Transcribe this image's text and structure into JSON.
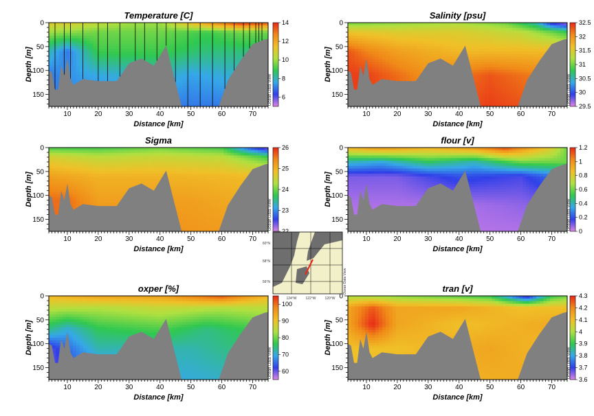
{
  "watermark": "Ocean Data View",
  "colormap": [
    "#e085e6",
    "#3040e8",
    "#36a8e8",
    "#30c850",
    "#b0e040",
    "#f0c028",
    "#f08a18",
    "#e82818"
  ],
  "terrain_color": "#808080",
  "station_x": [
    6,
    9,
    11,
    15,
    20,
    23,
    27,
    32,
    35,
    39,
    42,
    45,
    49,
    53,
    57,
    61,
    64,
    67,
    69,
    71,
    72,
    73
  ],
  "map": {
    "lat_labels": [
      "60°N",
      "58°N",
      "56°N"
    ],
    "lon_labels": [
      "124°W",
      "122°W",
      "120°W"
    ],
    "watermark": "Ocean Data View"
  },
  "chart_data": [
    {
      "id": "temperature",
      "type": "heatmap",
      "title": "Temperature [C]",
      "xlabel": "Distance [km]",
      "ylabel": "Depth [m]",
      "xlim": [
        4,
        75
      ],
      "ylim": [
        0,
        175
      ],
      "xticks": [
        10,
        20,
        30,
        40,
        50,
        60,
        70
      ],
      "yticks": [
        0,
        50,
        100,
        150
      ],
      "colorbar": {
        "ticks": [
          "6",
          "8",
          "10",
          "12",
          "14"
        ],
        "min": 5,
        "max": 14
      },
      "stations_shown": true,
      "field": {
        "levels": [
          {
            "depth": 0,
            "values": [
              [
                4,
                11
              ],
              [
                10,
                11
              ],
              [
                20,
                10.5
              ],
              [
                30,
                10
              ],
              [
                40,
                10
              ],
              [
                50,
                11.5
              ],
              [
                60,
                13
              ],
              [
                66,
                14
              ],
              [
                75,
                13.5
              ]
            ]
          },
          {
            "depth": 20,
            "values": [
              [
                4,
                10
              ],
              [
                20,
                9.5
              ],
              [
                40,
                9.5
              ],
              [
                55,
                9
              ],
              [
                66,
                9.5
              ],
              [
                75,
                9.5
              ]
            ]
          },
          {
            "depth": 60,
            "values": [
              [
                4,
                8
              ],
              [
                10,
                7
              ],
              [
                20,
                9
              ],
              [
                40,
                9
              ],
              [
                55,
                8.5
              ],
              [
                75,
                8.5
              ]
            ]
          },
          {
            "depth": 110,
            "values": [
              [
                4,
                7
              ],
              [
                15,
                7.5
              ],
              [
                40,
                8
              ],
              [
                50,
                7.5
              ],
              [
                75,
                8
              ]
            ]
          },
          {
            "depth": 175,
            "values": [
              [
                4,
                7
              ],
              [
                40,
                7
              ],
              [
                50,
                7
              ],
              [
                75,
                7
              ]
            ]
          }
        ]
      }
    },
    {
      "id": "salinity",
      "type": "heatmap",
      "title": "Salinity [psu]",
      "xlabel": "Distance [km]",
      "ylabel": "Depth [m]",
      "xlim": [
        4,
        75
      ],
      "ylim": [
        0,
        175
      ],
      "xticks": [
        10,
        20,
        30,
        40,
        50,
        60,
        70
      ],
      "yticks": [
        0,
        50,
        100,
        150
      ],
      "colorbar": {
        "ticks": [
          "29.5",
          "30",
          "30.5",
          "31",
          "31.5",
          "32",
          "32.5"
        ],
        "min": 29.5,
        "max": 32.5
      },
      "stations_shown": false,
      "field": {
        "levels": [
          {
            "depth": 0,
            "values": [
              [
                4,
                31
              ],
              [
                20,
                31.1
              ],
              [
                40,
                31.2
              ],
              [
                55,
                31
              ],
              [
                65,
                30.5
              ],
              [
                70,
                29.8
              ],
              [
                75,
                29.6
              ]
            ]
          },
          {
            "depth": 20,
            "values": [
              [
                4,
                31.6
              ],
              [
                20,
                31.5
              ],
              [
                40,
                31.5
              ],
              [
                60,
                31.3
              ],
              [
                70,
                31
              ],
              [
                75,
                30.8
              ]
            ]
          },
          {
            "depth": 60,
            "values": [
              [
                4,
                32.3
              ],
              [
                10,
                32.1
              ],
              [
                20,
                31.9
              ],
              [
                40,
                31.7
              ],
              [
                60,
                31.7
              ],
              [
                75,
                31.7
              ]
            ]
          },
          {
            "depth": 110,
            "values": [
              [
                4,
                32.4
              ],
              [
                10,
                32.4
              ],
              [
                30,
                32
              ],
              [
                50,
                32.3
              ],
              [
                75,
                32
              ]
            ]
          },
          {
            "depth": 175,
            "values": [
              [
                4,
                32.4
              ],
              [
                30,
                32.2
              ],
              [
                50,
                32.4
              ],
              [
                75,
                32.2
              ]
            ]
          }
        ]
      }
    },
    {
      "id": "sigma",
      "type": "heatmap",
      "title": "Sigma",
      "xlabel": "Distance [km]",
      "ylabel": "Depth [m]",
      "xlim": [
        4,
        75
      ],
      "ylim": [
        0,
        175
      ],
      "xticks": [
        10,
        20,
        30,
        40,
        50,
        60,
        70
      ],
      "yticks": [
        0,
        50,
        100,
        150
      ],
      "colorbar": {
        "ticks": [
          "22",
          "23",
          "24",
          "25",
          "26"
        ],
        "min": 22,
        "max": 26
      },
      "stations_shown": false,
      "field": {
        "levels": [
          {
            "depth": 0,
            "values": [
              [
                4,
                23.8
              ],
              [
                20,
                23.8
              ],
              [
                40,
                24
              ],
              [
                60,
                23.8
              ],
              [
                70,
                22.6
              ],
              [
                75,
                22.2
              ]
            ]
          },
          {
            "depth": 20,
            "values": [
              [
                4,
                24.6
              ],
              [
                20,
                24.4
              ],
              [
                40,
                24.5
              ],
              [
                60,
                24.4
              ],
              [
                70,
                24
              ],
              [
                75,
                23.8
              ]
            ]
          },
          {
            "depth": 60,
            "values": [
              [
                4,
                25.2
              ],
              [
                20,
                25
              ],
              [
                40,
                25
              ],
              [
                75,
                24.9
              ]
            ]
          },
          {
            "depth": 110,
            "values": [
              [
                4,
                25.6
              ],
              [
                10,
                25.6
              ],
              [
                20,
                25.2
              ],
              [
                50,
                25.2
              ],
              [
                75,
                25
              ]
            ]
          },
          {
            "depth": 175,
            "values": [
              [
                4,
                25.6
              ],
              [
                50,
                25.3
              ],
              [
                75,
                25.2
              ]
            ]
          }
        ]
      }
    },
    {
      "id": "flour",
      "type": "heatmap",
      "title": "flour [v]",
      "xlabel": "Distance [km]",
      "ylabel": "Depth [m]",
      "xlim": [
        4,
        75
      ],
      "ylim": [
        0,
        175
      ],
      "xticks": [
        10,
        20,
        30,
        40,
        50,
        60,
        70
      ],
      "yticks": [
        0,
        50,
        100,
        150
      ],
      "colorbar": {
        "ticks": [
          "0",
          "0.2",
          "0.4",
          "0.6",
          "0.8",
          "1",
          "1.2"
        ],
        "min": 0,
        "max": 1.2
      },
      "stations_shown": false,
      "field": {
        "levels": [
          {
            "depth": 0,
            "values": [
              [
                4,
                0.9
              ],
              [
                15,
                1
              ],
              [
                30,
                0.9
              ],
              [
                45,
                1
              ],
              [
                55,
                1.15
              ],
              [
                70,
                0.8
              ],
              [
                75,
                0.6
              ]
            ]
          },
          {
            "depth": 30,
            "values": [
              [
                4,
                0.4
              ],
              [
                15,
                0.35
              ],
              [
                30,
                0.5
              ],
              [
                45,
                0.4
              ],
              [
                60,
                0.6
              ],
              [
                75,
                0.6
              ]
            ]
          },
          {
            "depth": 60,
            "values": [
              [
                4,
                0.1
              ],
              [
                20,
                0.1
              ],
              [
                40,
                0.2
              ],
              [
                60,
                0.15
              ],
              [
                75,
                0.3
              ]
            ]
          },
          {
            "depth": 120,
            "values": [
              [
                4,
                0.05
              ],
              [
                40,
                0.05
              ],
              [
                75,
                0.1
              ]
            ]
          },
          {
            "depth": 175,
            "values": [
              [
                4,
                0.03
              ],
              [
                75,
                0.05
              ]
            ]
          }
        ]
      }
    },
    {
      "id": "oxper",
      "type": "heatmap",
      "title": "oxper [%]",
      "xlabel": "Distance [km]",
      "ylabel": "Depth [m]",
      "xlim": [
        4,
        75
      ],
      "ylim": [
        0,
        175
      ],
      "xticks": [
        10,
        20,
        30,
        40,
        50,
        60,
        70
      ],
      "yticks": [
        0,
        50,
        100,
        150
      ],
      "colorbar": {
        "ticks": [
          "60",
          "70",
          "80",
          "90",
          "100"
        ],
        "min": 55,
        "max": 105
      },
      "stations_shown": false,
      "field": {
        "levels": [
          {
            "depth": 0,
            "values": [
              [
                4,
                92
              ],
              [
                20,
                95
              ],
              [
                40,
                95
              ],
              [
                60,
                102
              ],
              [
                75,
                92
              ]
            ]
          },
          {
            "depth": 25,
            "values": [
              [
                4,
                85
              ],
              [
                20,
                84
              ],
              [
                40,
                86
              ],
              [
                60,
                84
              ],
              [
                75,
                85
              ]
            ]
          },
          {
            "depth": 70,
            "values": [
              [
                4,
                74
              ],
              [
                10,
                70
              ],
              [
                20,
                76
              ],
              [
                40,
                78
              ],
              [
                55,
                74
              ],
              [
                75,
                78
              ]
            ]
          },
          {
            "depth": 110,
            "values": [
              [
                4,
                60
              ],
              [
                10,
                65
              ],
              [
                20,
                72
              ],
              [
                50,
                72
              ],
              [
                75,
                76
              ]
            ]
          },
          {
            "depth": 175,
            "values": [
              [
                4,
                60
              ],
              [
                40,
                70
              ],
              [
                50,
                70
              ],
              [
                75,
                72
              ]
            ]
          }
        ]
      }
    },
    {
      "id": "tran",
      "type": "heatmap",
      "title": "tran [v]",
      "xlabel": "Distance [km]",
      "ylabel": "Depth [m]",
      "xlim": [
        4,
        75
      ],
      "ylim": [
        0,
        175
      ],
      "xticks": [
        10,
        20,
        30,
        40,
        50,
        60,
        70
      ],
      "yticks": [
        0,
        50,
        100,
        150
      ],
      "colorbar": {
        "ticks": [
          "3.6",
          "3.7",
          "3.8",
          "3.9",
          "4",
          "4.1",
          "4.2",
          "4.3"
        ],
        "min": 3.6,
        "max": 4.3
      },
      "stations_shown": false,
      "field": {
        "levels": [
          {
            "depth": 0,
            "values": [
              [
                4,
                4
              ],
              [
                30,
                3.95
              ],
              [
                50,
                3.9
              ],
              [
                62,
                3.65
              ],
              [
                70,
                3.9
              ],
              [
                75,
                3.95
              ]
            ]
          },
          {
            "depth": 25,
            "values": [
              [
                4,
                4.15
              ],
              [
                12,
                4.25
              ],
              [
                20,
                4.15
              ],
              [
                40,
                4.15
              ],
              [
                60,
                4.1
              ],
              [
                75,
                4.1
              ]
            ]
          },
          {
            "depth": 60,
            "values": [
              [
                4,
                4.15
              ],
              [
                12,
                4.3
              ],
              [
                20,
                4.15
              ],
              [
                40,
                4.1
              ],
              [
                75,
                4.15
              ]
            ]
          },
          {
            "depth": 110,
            "values": [
              [
                4,
                4.1
              ],
              [
                20,
                4.1
              ],
              [
                50,
                4.15
              ],
              [
                75,
                4.1
              ]
            ]
          },
          {
            "depth": 175,
            "values": [
              [
                4,
                4.1
              ],
              [
                75,
                4.15
              ]
            ]
          }
        ]
      }
    }
  ],
  "bathymetry": [
    [
      4,
      100
    ],
    [
      5,
      104
    ],
    [
      6,
      140
    ],
    [
      7,
      140
    ],
    [
      8,
      90
    ],
    [
      9,
      110
    ],
    [
      10,
      75
    ],
    [
      11,
      118
    ],
    [
      12,
      130
    ],
    [
      15,
      118
    ],
    [
      20,
      122
    ],
    [
      26,
      122
    ],
    [
      30,
      85
    ],
    [
      34,
      75
    ],
    [
      38,
      90
    ],
    [
      42,
      48
    ],
    [
      47,
      175
    ],
    [
      59,
      175
    ],
    [
      62,
      120
    ],
    [
      66,
      80
    ],
    [
      70,
      45
    ],
    [
      74,
      35
    ],
    [
      75,
      34
    ]
  ]
}
